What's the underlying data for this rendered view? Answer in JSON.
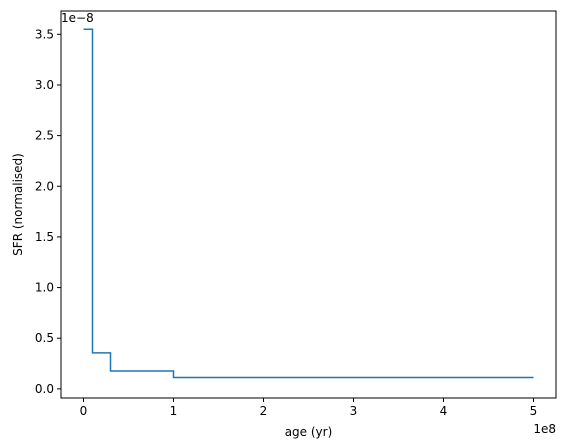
{
  "chart_data": {
    "type": "line",
    "title": "",
    "xlabel": "age (yr)",
    "ylabel": "SFR (normalised)",
    "x_offset_label": "1e8",
    "y_offset_label": "1e−8",
    "xlim": [
      -0.25,
      5.25
    ],
    "ylim": [
      -0.09,
      3.73
    ],
    "x_scale_factor": 100000000.0,
    "y_scale_factor": 1e-08,
    "x_ticks": [
      0,
      1,
      2,
      3,
      4,
      5
    ],
    "x_tick_labels": [
      "0",
      "1",
      "2",
      "3",
      "4",
      "5"
    ],
    "y_ticks": [
      0.0,
      0.5,
      1.0,
      1.5,
      2.0,
      2.5,
      3.0,
      3.5
    ],
    "y_tick_labels": [
      "0.0",
      "0.5",
      "1.0",
      "1.5",
      "2.0",
      "2.5",
      "3.0",
      "3.5"
    ],
    "grid": false,
    "legend": null,
    "series": [
      {
        "color": "#1f77b4",
        "x": [
          0,
          0.1,
          0.1,
          0.3,
          0.3,
          1.0,
          1.0,
          5.0
        ],
        "y": [
          3.55,
          3.55,
          0.355,
          0.355,
          0.177,
          0.177,
          0.112,
          0.112
        ]
      }
    ]
  }
}
